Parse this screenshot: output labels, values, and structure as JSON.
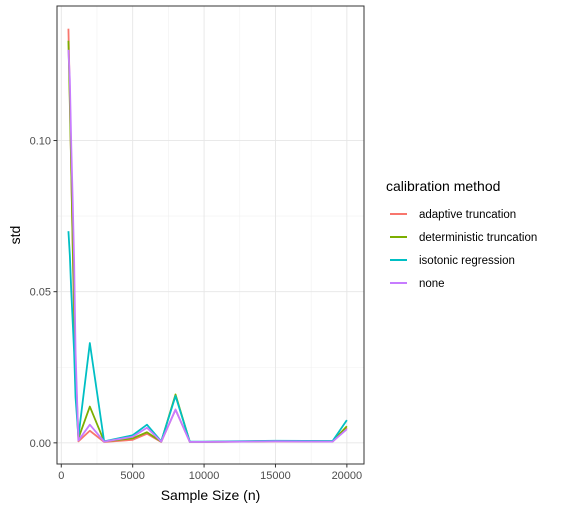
{
  "chart_data": {
    "type": "line",
    "title": "",
    "xlabel": "Sample Size (n)",
    "ylabel": "std",
    "xlim": [
      -300,
      21200
    ],
    "ylim": [
      -0.007,
      0.1445
    ],
    "x_ticks": [
      0,
      5000,
      10000,
      15000,
      20000
    ],
    "x_tick_labels": [
      "0",
      "5000",
      "10000",
      "15000",
      "20000"
    ],
    "y_ticks": [
      0.0,
      0.05,
      0.1
    ],
    "y_tick_labels": [
      "0.00",
      "0.05",
      "0.10"
    ],
    "grid": true,
    "legend_title": "calibration method",
    "legend_position": "right",
    "x": [
      500,
      600,
      700,
      800,
      900,
      1000,
      1200,
      2000,
      3000,
      5000,
      6000,
      7000,
      8000,
      9000,
      10000,
      15000,
      19000,
      20000
    ],
    "series": [
      {
        "name": "adaptive truncation",
        "color": "#F8766D",
        "values": [
          0.137,
          0.115,
          0.09,
          0.065,
          0.04,
          0.02,
          0.0005,
          0.004,
          0.0003,
          0.001,
          0.003,
          0.0003,
          0.011,
          0.0003,
          0.0003,
          0.0005,
          0.0004,
          0.005
        ]
      },
      {
        "name": "deterministic truncation",
        "color": "#7CAE00",
        "values": [
          0.133,
          0.112,
          0.09,
          0.066,
          0.045,
          0.025,
          0.0015,
          0.012,
          0.0005,
          0.0015,
          0.0035,
          0.0004,
          0.016,
          0.0003,
          0.0003,
          0.0006,
          0.0005,
          0.0055
        ]
      },
      {
        "name": "isotonic regression",
        "color": "#00BFC4",
        "values": [
          0.07,
          0.062,
          0.05,
          0.04,
          0.03,
          0.015,
          0.002,
          0.033,
          0.0005,
          0.0025,
          0.006,
          0.0005,
          0.0155,
          0.0004,
          0.0004,
          0.0007,
          0.0006,
          0.0075
        ]
      },
      {
        "name": "none",
        "color": "#C77CFF",
        "values": [
          0.13,
          0.12,
          0.098,
          0.08,
          0.06,
          0.03,
          0.0008,
          0.006,
          0.0004,
          0.002,
          0.005,
          0.0004,
          0.011,
          0.0003,
          0.0003,
          0.0005,
          0.0004,
          0.0045
        ]
      }
    ]
  }
}
